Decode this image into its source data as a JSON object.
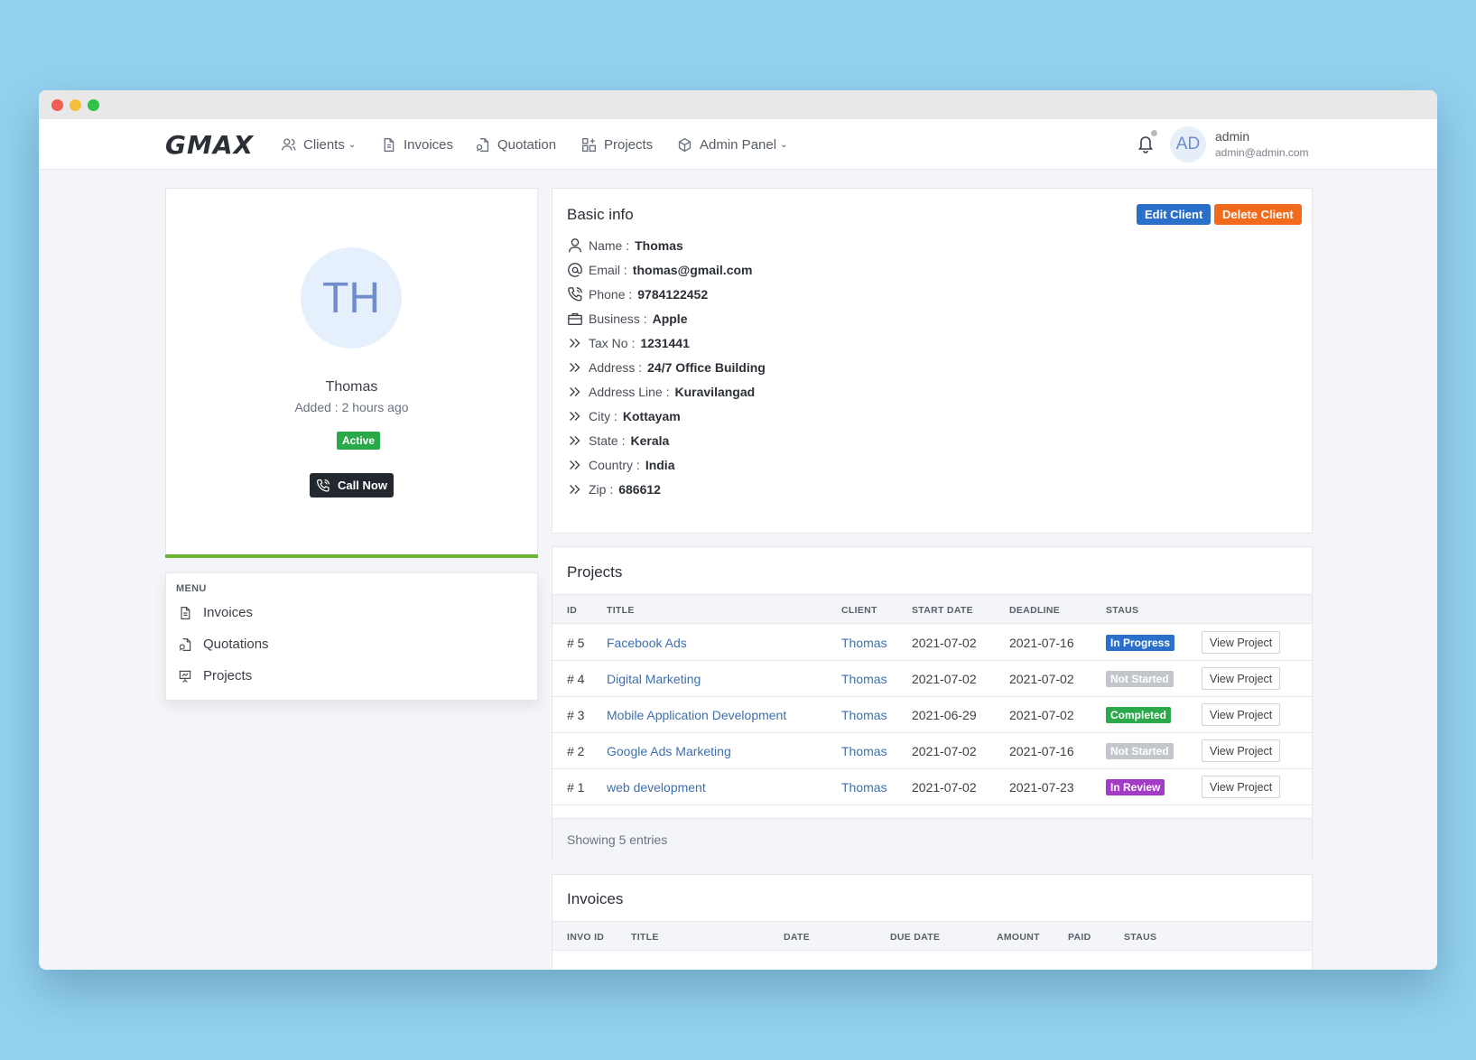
{
  "nav": {
    "logo": "GMAX",
    "clients": "Clients",
    "invoices": "Invoices",
    "quotation": "Quotation",
    "projects": "Projects",
    "admin_panel": "Admin Panel"
  },
  "user": {
    "initials": "AD",
    "name": "admin",
    "email": "admin@admin.com"
  },
  "profile": {
    "initials": "TH",
    "name": "Thomas",
    "added": "Added : 2 hours ago",
    "status": "Active",
    "call_label": "Call Now"
  },
  "menu": {
    "heading": "MENU",
    "items": [
      "Invoices",
      "Quotations",
      "Projects"
    ]
  },
  "basic": {
    "title": "Basic info",
    "edit_label": "Edit Client",
    "delete_label": "Delete Client",
    "rows": [
      {
        "label": "Name :",
        "value": "Thomas",
        "icon": "user-icon"
      },
      {
        "label": "Email :",
        "value": "thomas@gmail.com",
        "icon": "at-icon"
      },
      {
        "label": "Phone :",
        "value": "9784122452",
        "icon": "phone-icon"
      },
      {
        "label": "Business :",
        "value": "Apple",
        "icon": "briefcase-icon"
      },
      {
        "label": "Tax No :",
        "value": "1231441",
        "icon": "chevrons-right-icon"
      },
      {
        "label": "Address :",
        "value": "24/7 Office Building",
        "icon": "chevrons-right-icon"
      },
      {
        "label": "Address Line :",
        "value": "Kuravilangad",
        "icon": "chevrons-right-icon"
      },
      {
        "label": "City :",
        "value": "Kottayam",
        "icon": "chevrons-right-icon"
      },
      {
        "label": "State :",
        "value": "Kerala",
        "icon": "chevrons-right-icon"
      },
      {
        "label": "Country :",
        "value": "India",
        "icon": "chevrons-right-icon"
      },
      {
        "label": "Zip :",
        "value": "686612",
        "icon": "chevrons-right-icon"
      }
    ]
  },
  "projects": {
    "title": "Projects",
    "headers": [
      "ID",
      "TITLE",
      "CLIENT",
      "START DATE",
      "DEADLINE",
      "STAUS"
    ],
    "rows": [
      {
        "id": "# 5",
        "title": "Facebook Ads",
        "client": "Thomas",
        "start": "2021-07-02",
        "deadline": "2021-07-16",
        "status": "In Progress",
        "status_color": "#2a6fc9",
        "action": "View Project"
      },
      {
        "id": "# 4",
        "title": "Digital Marketing",
        "client": "Thomas",
        "start": "2021-07-02",
        "deadline": "2021-07-02",
        "status": "Not Started",
        "status_color": "#c3c7cd",
        "action": "View Project"
      },
      {
        "id": "# 3",
        "title": "Mobile Application Development",
        "client": "Thomas",
        "start": "2021-06-29",
        "deadline": "2021-07-02",
        "status": "Completed",
        "status_color": "#2aa94a",
        "action": "View Project"
      },
      {
        "id": "# 2",
        "title": "Google Ads Marketing",
        "client": "Thomas",
        "start": "2021-07-02",
        "deadline": "2021-07-16",
        "status": "Not Started",
        "status_color": "#c3c7cd",
        "action": "View Project"
      },
      {
        "id": "# 1",
        "title": "web development",
        "client": "Thomas",
        "start": "2021-07-02",
        "deadline": "2021-07-23",
        "status": "In Review",
        "status_color": "#a43bc7",
        "action": "View Project"
      }
    ],
    "footer": "Showing 5 entries"
  },
  "invoices": {
    "title": "Invoices",
    "headers": [
      "INVO ID",
      "TITLE",
      "DATE",
      "DUE DATE",
      "AMOUNT",
      "PAID",
      "STAUS"
    ]
  },
  "colors": {
    "edit": "#2a6fc9",
    "delete": "#f26b1d",
    "active": "#2aa94a",
    "accent_bar": "#6cb534"
  }
}
